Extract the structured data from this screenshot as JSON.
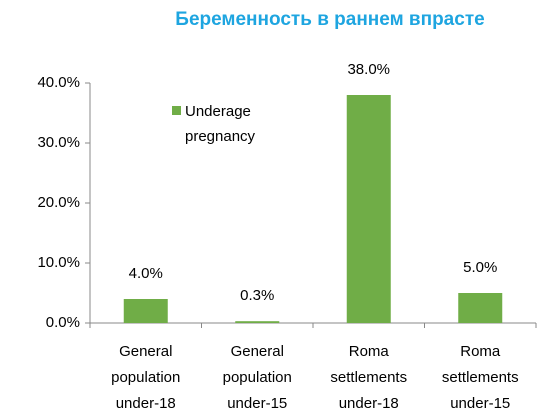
{
  "chart_data": {
    "type": "bar",
    "title": "Беременность в раннем впрасте",
    "categories": [
      "General\npopulation\nunder-18",
      "General\npopulation\nunder-15",
      "Roma\nsettlements\nunder-18",
      "Roma\nsettlements\nunder-15"
    ],
    "series": [
      {
        "name": "Underage\npregnancy",
        "color": "#70ad47",
        "values": [
          4.0,
          0.3,
          38.0,
          5.0
        ],
        "value_labels": [
          "4.0%",
          "0.3%",
          "38.0%",
          "5.0%"
        ]
      }
    ],
    "ylim": [
      0,
      40
    ],
    "yticks": [
      {
        "value": 0,
        "label": "0.0%"
      },
      {
        "value": 10,
        "label": "10.0%"
      },
      {
        "value": 20,
        "label": "20.0%"
      },
      {
        "value": 30,
        "label": "30.0%"
      },
      {
        "value": 40,
        "label": "40.0%"
      }
    ],
    "grid": false,
    "legend": "top-left"
  }
}
